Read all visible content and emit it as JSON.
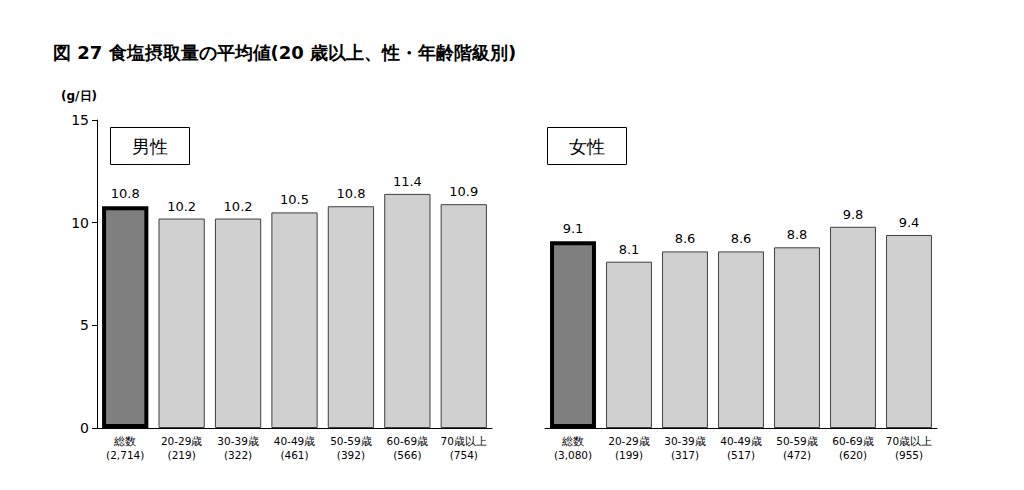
{
  "title": "図 27 食塩摂取量の平均値(20 歳以上、性・年齢階級別)",
  "chart_data": [
    {
      "type": "bar",
      "title": "男性",
      "y_label": "(g/日)",
      "categories": [
        "総数\n(2,714)",
        "20-29歳\n(219)",
        "30-39歳\n(322)",
        "40-49歳\n(461)",
        "50-59歳\n(392)",
        "60-69歳\n(566)",
        "70歳以上\n(754)"
      ],
      "values": [
        10.8,
        10.2,
        10.2,
        10.5,
        10.8,
        11.4,
        10.9
      ],
      "colors": [
        "#7f7f7f",
        "#d0d0d0",
        "#d0d0d0",
        "#d0d0d0",
        "#d0d0d0",
        "#d0d0d0",
        "#d0d0d0"
      ],
      "ylim": [
        0,
        15
      ],
      "yticks": [
        0,
        5,
        10,
        15
      ],
      "grid": false,
      "data_labels": true
    },
    {
      "type": "bar",
      "title": "女性",
      "categories": [
        "総数\n(3,080)",
        "20-29歳\n(199)",
        "30-39歳\n(317)",
        "40-49歳\n(517)",
        "50-59歳\n(472)",
        "60-69歳\n(620)",
        "70歳以上\n(955)"
      ],
      "values": [
        9.1,
        8.1,
        8.6,
        8.6,
        8.8,
        9.8,
        9.4
      ],
      "colors": [
        "#7f7f7f",
        "#d0d0d0",
        "#d0d0d0",
        "#d0d0d0",
        "#d0d0d0",
        "#d0d0d0",
        "#d0d0d0"
      ],
      "ylim": [
        0,
        15
      ],
      "yticks": [
        0,
        5,
        10,
        15
      ],
      "grid": false,
      "data_labels": true,
      "tick_labels": "x"
    }
  ]
}
